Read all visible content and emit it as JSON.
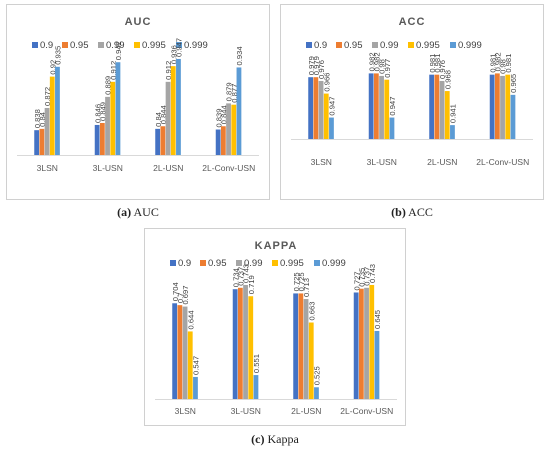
{
  "colors": {
    "0.9": "#4472c4",
    "0.95": "#ed7d31",
    "0.99": "#a5a5a5",
    "0.995": "#ffc000",
    "0.999": "#5b9bd5"
  },
  "captions": {
    "a": {
      "letter": "(a)",
      "text": " AUC"
    },
    "b": {
      "letter": "(b)",
      "text": " ACC"
    },
    "c": {
      "letter": "(c)",
      "text": " Kappa"
    }
  },
  "chart_data": [
    {
      "id": "auc",
      "type": "bar",
      "title": "AUC",
      "categories": [
        "3LSN",
        "3L-USN",
        "2L-USN",
        "2L-Conv-USN"
      ],
      "series": [
        {
          "name": "0.9",
          "values": [
            0.838,
            0.846,
            0.84,
            0.839
          ]
        },
        {
          "name": "0.95",
          "values": [
            0.84,
            0.849,
            0.844,
            0.844
          ]
        },
        {
          "name": "0.99",
          "values": [
            0.872,
            0.889,
            0.912,
            0.879
          ]
        },
        {
          "name": "0.995",
          "values": [
            0.92,
            0.912,
            0.936,
            0.877
          ]
        },
        {
          "name": "0.999",
          "values": [
            0.935,
            0.942,
            0.947,
            0.934
          ]
        }
      ],
      "ylim": [
        0.8,
        0.95
      ],
      "legend": "top",
      "grid": false
    },
    {
      "id": "acc",
      "type": "bar",
      "title": "ACC",
      "categories": [
        "3LSN",
        "3L-USN",
        "2L-USN",
        "2L-Conv-USN"
      ],
      "series": [
        {
          "name": "0.9",
          "values": [
            0.979,
            0.982,
            0.981,
            0.981
          ]
        },
        {
          "name": "0.95",
          "values": [
            0.979,
            0.982,
            0.981,
            0.982
          ]
        },
        {
          "name": "0.99",
          "values": [
            0.976,
            0.98,
            0.976,
            0.98
          ]
        },
        {
          "name": "0.995",
          "values": [
            0.966,
            0.977,
            0.968,
            0.981
          ]
        },
        {
          "name": "0.999",
          "values": [
            0.947,
            0.947,
            0.941,
            0.965
          ]
        }
      ],
      "ylim": [
        0.93,
        0.995
      ],
      "legend": "top",
      "grid": false
    },
    {
      "id": "kappa",
      "type": "bar",
      "title": "KAPPA",
      "categories": [
        "3LSN",
        "3L-USN",
        "2L-USN",
        "2L-Conv-USN"
      ],
      "series": [
        {
          "name": "0.9",
          "values": [
            0.704,
            0.734,
            0.725,
            0.727
          ]
        },
        {
          "name": "0.95",
          "values": [
            0.7,
            0.737,
            0.725,
            0.735
          ]
        },
        {
          "name": "0.99",
          "values": [
            0.697,
            0.743,
            0.713,
            0.737
          ]
        },
        {
          "name": "0.995",
          "values": [
            0.644,
            0.719,
            0.663,
            0.743
          ]
        },
        {
          "name": "0.999",
          "values": [
            0.547,
            0.551,
            0.525,
            0.645
          ]
        }
      ],
      "ylim": [
        0.5,
        0.76
      ],
      "legend": "top",
      "grid": false
    }
  ]
}
